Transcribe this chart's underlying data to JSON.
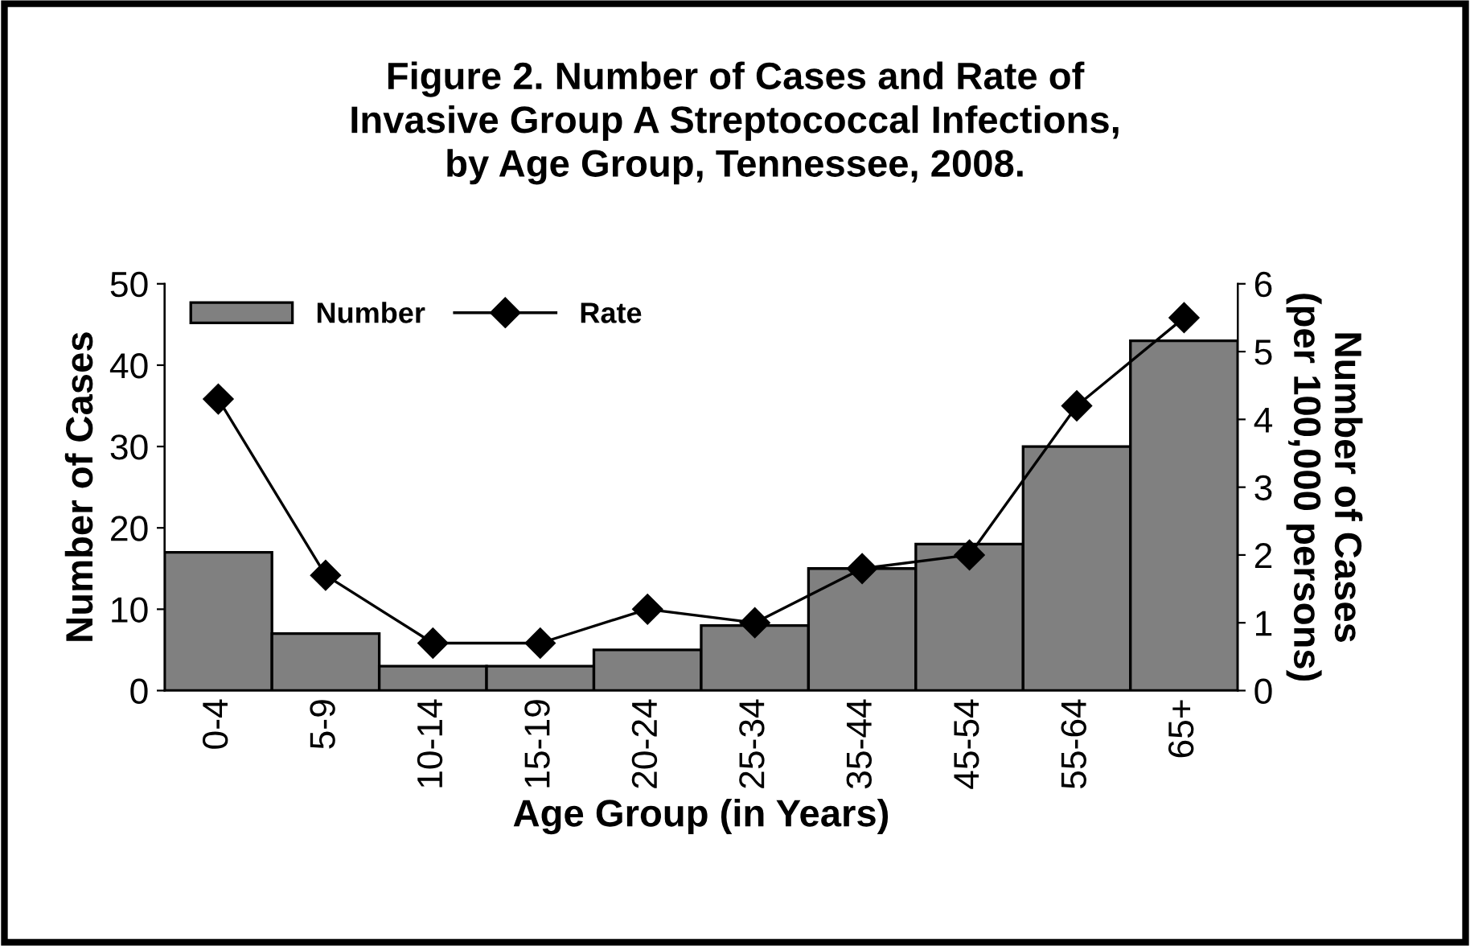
{
  "chart_data": {
    "type": "bar",
    "title": "Figure 2. Number of Cases and Rate of\nInvasive Group A Streptococcal Infections,\nby Age Group, Tennessee, 2008.",
    "xlabel": "Age Group (in Years)",
    "ylabel": "Number of Cases",
    "y2label": "Number of Cases\n(per 100,000 persons)",
    "categories": [
      "0-4",
      "5-9",
      "10-14",
      "15-19",
      "20-24",
      "25-34",
      "35-44",
      "45-54",
      "55-64",
      "65+"
    ],
    "series": [
      {
        "name": "Number",
        "color": "#808080",
        "values": [
          17,
          7,
          3,
          3,
          5,
          8,
          15,
          18,
          30,
          43
        ]
      },
      {
        "name": "Rate",
        "type": "line",
        "axis": "y2",
        "color": "#000000",
        "marker": "diamond",
        "values": [
          4.3,
          1.7,
          0.7,
          0.7,
          1.2,
          1.0,
          1.8,
          2.0,
          4.2,
          5.5
        ]
      }
    ],
    "ylim": [
      0,
      50
    ],
    "yticks": [
      0,
      10,
      20,
      30,
      40,
      50
    ],
    "y2lim": [
      0,
      6
    ],
    "y2ticks": [
      0,
      1,
      2,
      3,
      4,
      5,
      6
    ],
    "legend": "top left",
    "grid": false
  }
}
